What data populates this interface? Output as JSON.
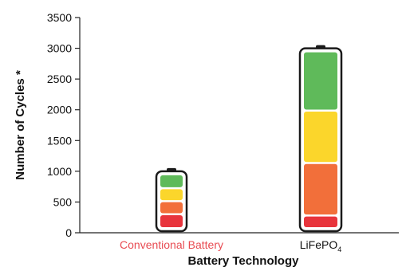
{
  "chart_data": {
    "type": "bar",
    "xlabel": "Battery Technology",
    "ylabel": "Number of Cycles *",
    "ylim": [
      0,
      3500
    ],
    "yticks": [
      0,
      500,
      1000,
      1500,
      2000,
      2500,
      3000,
      3500
    ],
    "grid": false,
    "categories": [
      {
        "label_main": "Conventional Battery",
        "label_sub": "",
        "color": "#E84B52",
        "total": 1000,
        "segments": [
          {
            "from": 0,
            "to": 250,
            "color": "#E8343C"
          },
          {
            "from": 250,
            "to": 500,
            "color": "#F26F3A"
          },
          {
            "from": 500,
            "to": 750,
            "color": "#FBD62B"
          },
          {
            "from": 750,
            "to": 1000,
            "color": "#5FBA5A"
          }
        ]
      },
      {
        "label_main": "LiFePO",
        "label_sub": "4",
        "color": "#111111",
        "total": 3000,
        "segments": [
          {
            "from": 0,
            "to": 200,
            "color": "#E8343C"
          },
          {
            "from": 200,
            "to": 1100,
            "color": "#F26F3A"
          },
          {
            "from": 1100,
            "to": 2000,
            "color": "#FBD62B"
          },
          {
            "from": 2000,
            "to": 3000,
            "color": "#5FBA5A"
          }
        ]
      }
    ]
  }
}
